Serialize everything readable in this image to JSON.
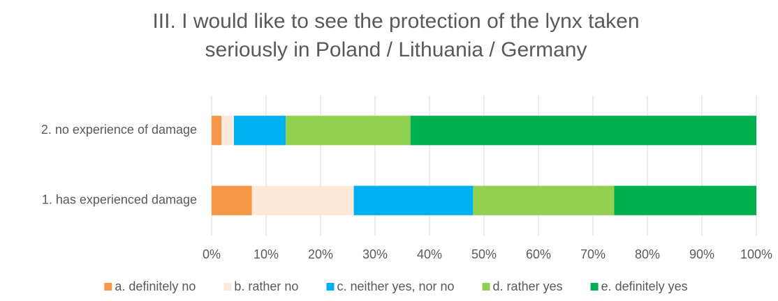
{
  "chart_data": {
    "type": "stacked_barh",
    "title": [
      "III. I would like to see the protection of the lynx taken",
      "seriously in Poland / Lithuania / Germany"
    ],
    "categories": [
      "1. has experienced damage",
      "2. no experience of damage"
    ],
    "series": [
      {
        "name": "a. definitely no",
        "color": "#F79646",
        "values": [
          7.4,
          1.8
        ]
      },
      {
        "name": "b. rather no",
        "color": "#FDE9D9",
        "values": [
          18.7,
          2.3
        ]
      },
      {
        "name": "c. neither yes, nor no",
        "color": "#00B0F0",
        "values": [
          21.9,
          9.5
        ]
      },
      {
        "name": "d. rather yes",
        "color": "#92D050",
        "values": [
          25.9,
          22.9
        ]
      },
      {
        "name": "e. definitely yes",
        "color": "#00B050",
        "values": [
          26.1,
          63.5
        ]
      }
    ],
    "xlim": [
      0,
      100
    ],
    "xticks": [
      {
        "value": 0,
        "label": "0%"
      },
      {
        "value": 10,
        "label": "10%"
      },
      {
        "value": 20,
        "label": "20%"
      },
      {
        "value": 30,
        "label": "30%"
      },
      {
        "value": 40,
        "label": "40%"
      },
      {
        "value": 50,
        "label": "50%"
      },
      {
        "value": 60,
        "label": "60%"
      },
      {
        "value": 70,
        "label": "70%"
      },
      {
        "value": 80,
        "label": "80%"
      },
      {
        "value": 90,
        "label": "90%"
      },
      {
        "value": 100,
        "label": "100%"
      }
    ],
    "grid": true,
    "legend": "bottom"
  }
}
